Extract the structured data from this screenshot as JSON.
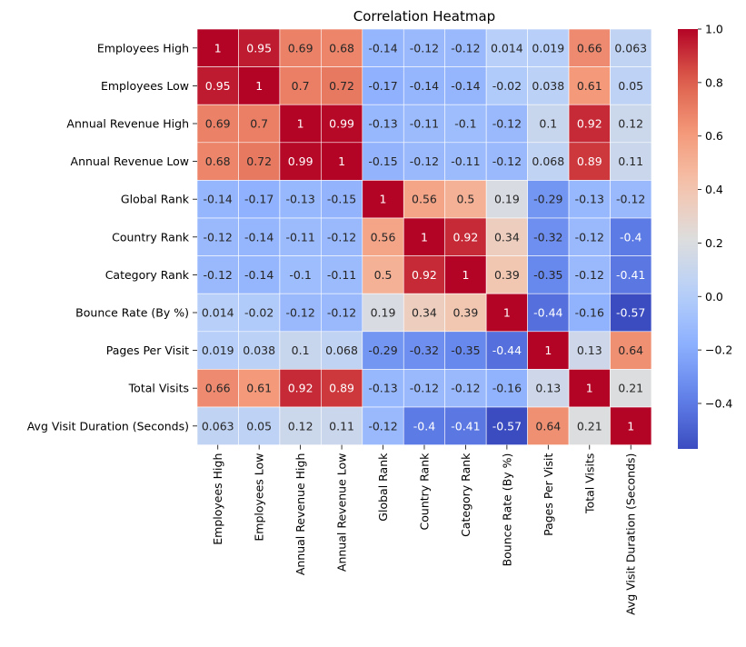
{
  "chart_data": {
    "type": "heatmap",
    "title": "Correlation Heatmap",
    "labels": [
      "Employees High",
      "Employees Low",
      "Annual Revenue High",
      "Annual Revenue Low",
      "Global Rank",
      "Country Rank",
      "Category Rank",
      "Bounce Rate (By %)",
      "Pages Per Visit",
      "Total Visits",
      "Avg Visit Duration (Seconds)"
    ],
    "values": [
      [
        1,
        0.95,
        0.69,
        0.68,
        -0.14,
        -0.12,
        -0.12,
        0.014,
        0.019,
        0.66,
        0.063
      ],
      [
        0.95,
        1,
        0.7,
        0.72,
        -0.17,
        -0.14,
        -0.14,
        -0.02,
        0.038,
        0.61,
        0.05
      ],
      [
        0.69,
        0.7,
        1,
        0.99,
        -0.13,
        -0.11,
        -0.1,
        -0.12,
        0.1,
        0.92,
        0.12
      ],
      [
        0.68,
        0.72,
        0.99,
        1,
        -0.15,
        -0.12,
        -0.11,
        -0.12,
        0.068,
        0.89,
        0.11
      ],
      [
        -0.14,
        -0.17,
        -0.13,
        -0.15,
        1,
        0.56,
        0.5,
        0.19,
        -0.29,
        -0.13,
        -0.12
      ],
      [
        -0.12,
        -0.14,
        -0.11,
        -0.12,
        0.56,
        1,
        0.92,
        0.34,
        -0.32,
        -0.12,
        -0.4
      ],
      [
        -0.12,
        -0.14,
        -0.1,
        -0.11,
        0.5,
        0.92,
        1,
        0.39,
        -0.35,
        -0.12,
        -0.41
      ],
      [
        0.014,
        -0.02,
        -0.12,
        -0.12,
        0.19,
        0.34,
        0.39,
        1,
        -0.44,
        -0.16,
        -0.57
      ],
      [
        0.019,
        0.038,
        0.1,
        0.068,
        -0.29,
        -0.32,
        -0.35,
        -0.44,
        1,
        0.13,
        0.64
      ],
      [
        0.66,
        0.61,
        0.92,
        0.89,
        -0.13,
        -0.12,
        -0.12,
        -0.16,
        0.13,
        1,
        0.21
      ],
      [
        0.063,
        0.05,
        0.12,
        0.11,
        -0.12,
        -0.4,
        -0.41,
        -0.57,
        0.64,
        0.21,
        1
      ]
    ],
    "colormap": "coolwarm",
    "vmin": -0.57,
    "vmax": 1,
    "colorbar_ticks": [
      {
        "value": 1.0,
        "label": "1.0"
      },
      {
        "value": 0.8,
        "label": "0.8"
      },
      {
        "value": 0.6,
        "label": "0.6"
      },
      {
        "value": 0.4,
        "label": "0.4"
      },
      {
        "value": 0.2,
        "label": "0.2"
      },
      {
        "value": 0.0,
        "label": "0.0"
      },
      {
        "value": -0.2,
        "label": "−0.2"
      },
      {
        "value": -0.4,
        "label": "−0.4"
      }
    ],
    "annotated": true,
    "grid": "white cell borders",
    "legend": "colorbar-right"
  }
}
